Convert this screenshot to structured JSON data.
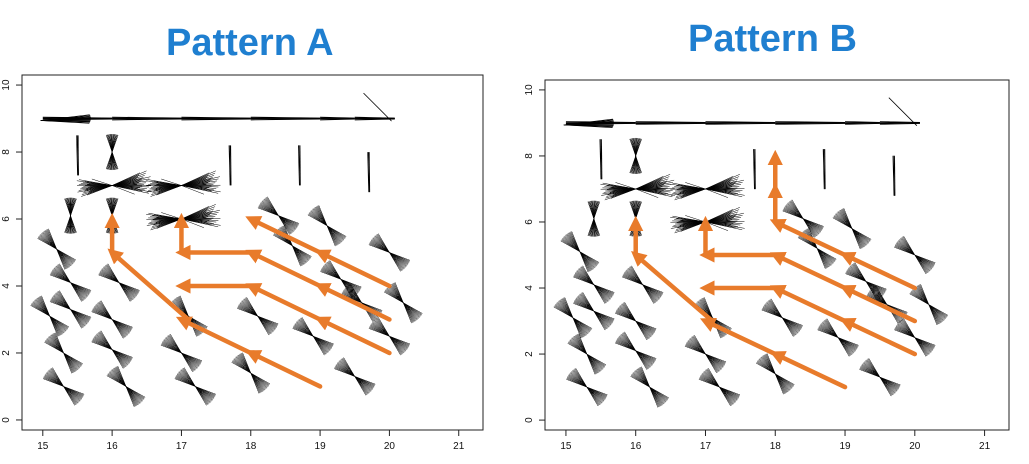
{
  "chart_data": [
    {
      "type": "scatter",
      "title": "Pattern A",
      "x_ticks": [
        15,
        16,
        17,
        18,
        19,
        20,
        21
      ],
      "y_ticks": [
        0,
        2,
        4,
        6,
        8,
        10
      ],
      "xlim": [
        14.7,
        21.35
      ],
      "ylim": [
        -0.3,
        10.3
      ],
      "grid": false,
      "legend": "none",
      "glyph_color": "#000000",
      "arrow_color": "#e87b2b",
      "top_row": {
        "y": 9.0,
        "x": [
          15.0,
          16.0,
          17.0,
          18.0,
          19.0,
          19.5
        ]
      },
      "vertical_glyphs": [
        {
          "x": 15.5,
          "y": 7.9
        },
        {
          "x": 17.7,
          "y": 7.6
        },
        {
          "x": 18.7,
          "y": 7.6
        },
        {
          "x": 19.7,
          "y": 7.4
        }
      ],
      "pinch_glyphs": [
        {
          "x": 16.0,
          "y": 8.0
        },
        {
          "x": 15.4,
          "y": 6.1
        },
        {
          "x": 16.0,
          "y": 6.1
        },
        {
          "x": 15.2,
          "y": 5.1
        },
        {
          "x": 15.4,
          "y": 4.1
        },
        {
          "x": 16.1,
          "y": 4.1
        },
        {
          "x": 15.1,
          "y": 3.1
        },
        {
          "x": 15.4,
          "y": 3.3
        },
        {
          "x": 16.0,
          "y": 3.0
        },
        {
          "x": 17.1,
          "y": 3.1
        },
        {
          "x": 18.1,
          "y": 3.1
        },
        {
          "x": 18.4,
          "y": 6.1
        },
        {
          "x": 18.6,
          "y": 5.2
        },
        {
          "x": 19.3,
          "y": 4.2
        },
        {
          "x": 19.6,
          "y": 3.5
        },
        {
          "x": 15.3,
          "y": 2.0
        },
        {
          "x": 16.0,
          "y": 2.1
        },
        {
          "x": 17.0,
          "y": 2.0
        },
        {
          "x": 18.0,
          "y": 1.4
        },
        {
          "x": 19.5,
          "y": 1.3
        },
        {
          "x": 15.3,
          "y": 1.0
        },
        {
          "x": 16.2,
          "y": 1.0
        },
        {
          "x": 17.2,
          "y": 1.0
        },
        {
          "x": 20.0,
          "y": 5.0
        },
        {
          "x": 20.2,
          "y": 3.5
        },
        {
          "x": 20.0,
          "y": 2.5
        },
        {
          "x": 18.9,
          "y": 2.5
        },
        {
          "x": 19.1,
          "y": 5.8
        }
      ],
      "starbursts": [
        {
          "x": 16.0,
          "y": 7.0
        },
        {
          "x": 17.0,
          "y": 7.0
        },
        {
          "x": 17.0,
          "y": 6.0
        }
      ],
      "arrows": [
        {
          "x1": 16.0,
          "y1": 5.0,
          "x2": 16.0,
          "y2": 6.0
        },
        {
          "x1": 17.0,
          "y1": 5.0,
          "x2": 17.0,
          "y2": 6.0
        },
        {
          "x1": 17.1,
          "y1": 3.0,
          "x2": 16.0,
          "y2": 5.0
        },
        {
          "x1": 18.0,
          "y1": 2.0,
          "x2": 17.0,
          "y2": 3.0
        },
        {
          "x1": 19.0,
          "y1": 1.0,
          "x2": 18.0,
          "y2": 2.0
        },
        {
          "x1": 20.0,
          "y1": 2.0,
          "x2": 19.0,
          "y2": 3.0
        },
        {
          "x1": 19.0,
          "y1": 3.0,
          "x2": 18.0,
          "y2": 4.0
        },
        {
          "x1": 18.0,
          "y1": 4.0,
          "x2": 17.0,
          "y2": 4.0
        },
        {
          "x1": 20.0,
          "y1": 3.0,
          "x2": 19.0,
          "y2": 4.0
        },
        {
          "x1": 19.0,
          "y1": 4.0,
          "x2": 18.0,
          "y2": 5.0
        },
        {
          "x1": 18.0,
          "y1": 5.0,
          "x2": 17.0,
          "y2": 5.0
        },
        {
          "x1": 20.0,
          "y1": 4.0,
          "x2": 19.0,
          "y2": 5.0
        },
        {
          "x1": 19.0,
          "y1": 5.0,
          "x2": 18.0,
          "y2": 6.0
        }
      ]
    },
    {
      "type": "scatter",
      "title": "Pattern B",
      "x_ticks": [
        15,
        16,
        17,
        18,
        19,
        20,
        21
      ],
      "y_ticks": [
        0,
        2,
        4,
        6,
        8,
        10
      ],
      "xlim": [
        14.7,
        21.35
      ],
      "ylim": [
        -0.3,
        10.3
      ],
      "grid": false,
      "legend": "none",
      "glyph_color": "#000000",
      "arrow_color": "#e87b2b",
      "top_row": {
        "y": 9.0,
        "x": [
          15.0,
          16.0,
          17.0,
          18.0,
          19.0,
          19.5
        ]
      },
      "vertical_glyphs": [
        {
          "x": 15.5,
          "y": 7.9
        },
        {
          "x": 17.7,
          "y": 7.6
        },
        {
          "x": 18.7,
          "y": 7.6
        },
        {
          "x": 19.7,
          "y": 7.4
        }
      ],
      "pinch_glyphs": [
        {
          "x": 16.0,
          "y": 8.0
        },
        {
          "x": 15.4,
          "y": 6.1
        },
        {
          "x": 16.0,
          "y": 6.1
        },
        {
          "x": 15.2,
          "y": 5.1
        },
        {
          "x": 15.4,
          "y": 4.1
        },
        {
          "x": 16.1,
          "y": 4.1
        },
        {
          "x": 15.1,
          "y": 3.1
        },
        {
          "x": 15.4,
          "y": 3.3
        },
        {
          "x": 16.0,
          "y": 3.0
        },
        {
          "x": 17.1,
          "y": 3.1
        },
        {
          "x": 18.1,
          "y": 3.1
        },
        {
          "x": 18.4,
          "y": 6.1
        },
        {
          "x": 18.6,
          "y": 5.2
        },
        {
          "x": 19.3,
          "y": 4.2
        },
        {
          "x": 19.6,
          "y": 3.5
        },
        {
          "x": 15.3,
          "y": 2.0
        },
        {
          "x": 16.0,
          "y": 2.1
        },
        {
          "x": 17.0,
          "y": 2.0
        },
        {
          "x": 18.0,
          "y": 1.4
        },
        {
          "x": 19.5,
          "y": 1.3
        },
        {
          "x": 15.3,
          "y": 1.0
        },
        {
          "x": 16.2,
          "y": 1.0
        },
        {
          "x": 17.2,
          "y": 1.0
        },
        {
          "x": 20.0,
          "y": 5.0
        },
        {
          "x": 20.2,
          "y": 3.5
        },
        {
          "x": 20.0,
          "y": 2.5
        },
        {
          "x": 18.9,
          "y": 2.5
        },
        {
          "x": 19.1,
          "y": 5.8
        }
      ],
      "starbursts": [
        {
          "x": 16.0,
          "y": 7.0
        },
        {
          "x": 17.0,
          "y": 7.0
        },
        {
          "x": 17.0,
          "y": 6.0
        }
      ],
      "arrows": [
        {
          "x1": 16.0,
          "y1": 5.0,
          "x2": 16.0,
          "y2": 6.0
        },
        {
          "x1": 17.0,
          "y1": 5.0,
          "x2": 17.0,
          "y2": 6.0
        },
        {
          "x1": 18.0,
          "y1": 6.0,
          "x2": 18.0,
          "y2": 7.0
        },
        {
          "x1": 18.0,
          "y1": 7.0,
          "x2": 18.0,
          "y2": 8.0
        },
        {
          "x1": 17.1,
          "y1": 3.0,
          "x2": 16.0,
          "y2": 5.0
        },
        {
          "x1": 18.0,
          "y1": 2.0,
          "x2": 17.0,
          "y2": 3.0
        },
        {
          "x1": 19.0,
          "y1": 1.0,
          "x2": 18.0,
          "y2": 2.0
        },
        {
          "x1": 20.0,
          "y1": 2.0,
          "x2": 19.0,
          "y2": 3.0
        },
        {
          "x1": 19.0,
          "y1": 3.0,
          "x2": 18.0,
          "y2": 4.0
        },
        {
          "x1": 18.0,
          "y1": 4.0,
          "x2": 17.0,
          "y2": 4.0
        },
        {
          "x1": 20.0,
          "y1": 3.0,
          "x2": 19.0,
          "y2": 4.0
        },
        {
          "x1": 19.0,
          "y1": 4.0,
          "x2": 18.0,
          "y2": 5.0
        },
        {
          "x1": 18.0,
          "y1": 5.0,
          "x2": 17.0,
          "y2": 5.0
        },
        {
          "x1": 20.0,
          "y1": 4.0,
          "x2": 19.0,
          "y2": 5.0
        },
        {
          "x1": 19.0,
          "y1": 5.0,
          "x2": 18.0,
          "y2": 6.0
        }
      ]
    }
  ]
}
